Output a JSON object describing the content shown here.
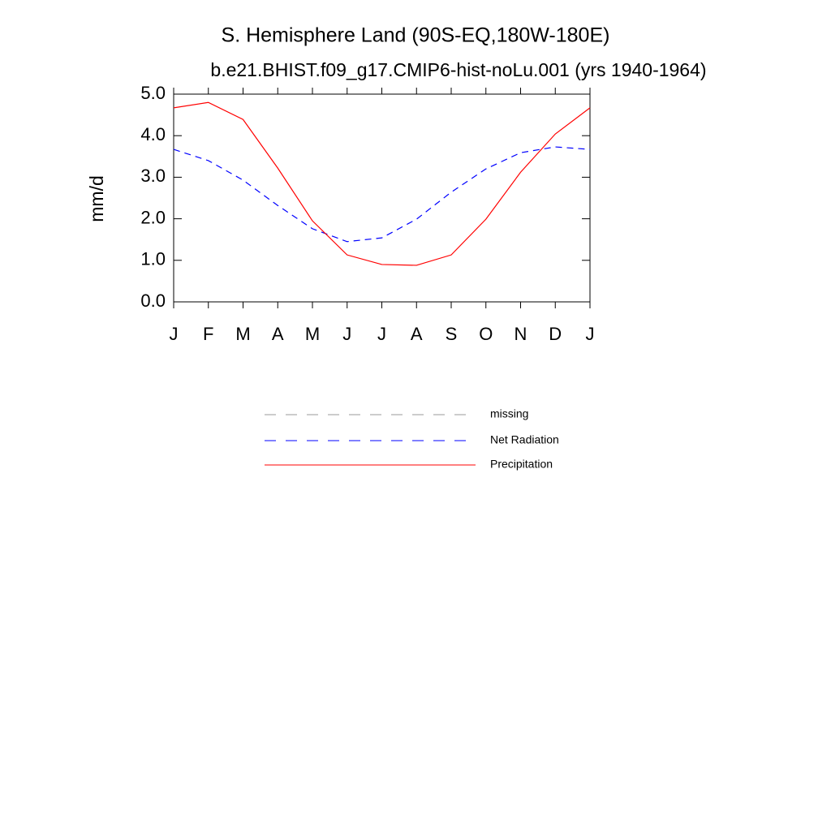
{
  "chart_data": {
    "type": "line",
    "title": "S. Hemisphere Land (90S-EQ,180W-180E)",
    "subtitle": "b.e21.BHIST.f09_g17.CMIP6-hist-noLu.001 (yrs 1940-1964)",
    "y_label": "mm/d",
    "categories": [
      "J",
      "F",
      "M",
      "A",
      "M",
      "J",
      "J",
      "A",
      "S",
      "O",
      "N",
      "D",
      "J"
    ],
    "series": [
      {
        "name": "missing",
        "color": "#999999",
        "dash": true,
        "values": [
          null,
          null,
          null,
          null,
          null,
          null,
          null,
          null,
          null,
          null,
          null,
          null,
          null
        ]
      },
      {
        "name": "Net Radiation",
        "color": "#0000ff",
        "dash": true,
        "values": [
          3.67,
          3.4,
          2.93,
          2.32,
          1.76,
          1.45,
          1.54,
          1.99,
          2.64,
          3.2,
          3.59,
          3.73,
          3.67
        ]
      },
      {
        "name": "Precipitation",
        "color": "#ff0000",
        "dash": false,
        "values": [
          4.67,
          4.8,
          4.39,
          3.22,
          1.95,
          1.13,
          0.9,
          0.88,
          1.13,
          1.99,
          3.12,
          4.04,
          4.67
        ]
      }
    ],
    "ylim": [
      0,
      5
    ],
    "yticks": [
      {
        "value": 0,
        "label": "0.0"
      },
      {
        "value": 1,
        "label": "1.0"
      },
      {
        "value": 2,
        "label": "2.0"
      },
      {
        "value": 3,
        "label": "3.0"
      },
      {
        "value": 4,
        "label": "4.0"
      },
      {
        "value": 5,
        "label": "5.0"
      }
    ]
  }
}
